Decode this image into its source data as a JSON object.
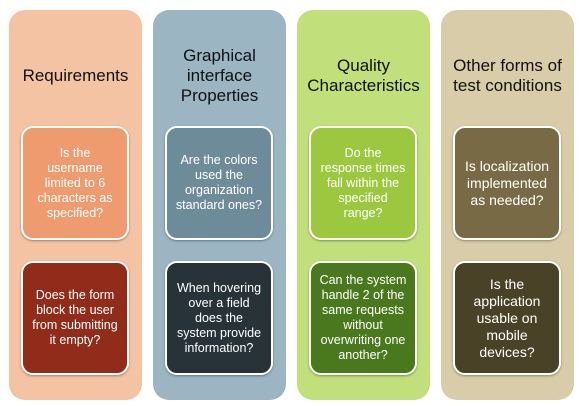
{
  "columns": [
    {
      "title": "Requirements",
      "colors": {
        "panel": "#f3c3a4",
        "card_top": "#ee9c6f",
        "card_bottom": "#902c19"
      },
      "cards": [
        "Is the username limited to 6 characters as specified?",
        "Does the form block the user from submitting it empty?"
      ]
    },
    {
      "title": "Graphical interface Properties",
      "colors": {
        "panel": "#9bb5c2",
        "card_top": "#6e8b99",
        "card_bottom": "#273338"
      },
      "cards": [
        "Are the colors used the organization standard ones?",
        "When hovering over a field does the system provide information?"
      ]
    },
    {
      "title": "Quality Characteristics",
      "colors": {
        "panel": "#c1df7a",
        "card_top": "#9bc83e",
        "card_bottom": "#4a781d"
      },
      "cards": [
        "Do the response times fall within the specified range?",
        "Can the system handle 2 of the same requests without overwriting one another?"
      ]
    },
    {
      "title": "Other forms of test conditions",
      "colors": {
        "panel": "#d8cda8",
        "card_top": "#776a44",
        "card_bottom": "#4a4226"
      },
      "cards": [
        "Is localization implemented as needed?",
        "Is the application usable on mobile devices?"
      ]
    }
  ]
}
